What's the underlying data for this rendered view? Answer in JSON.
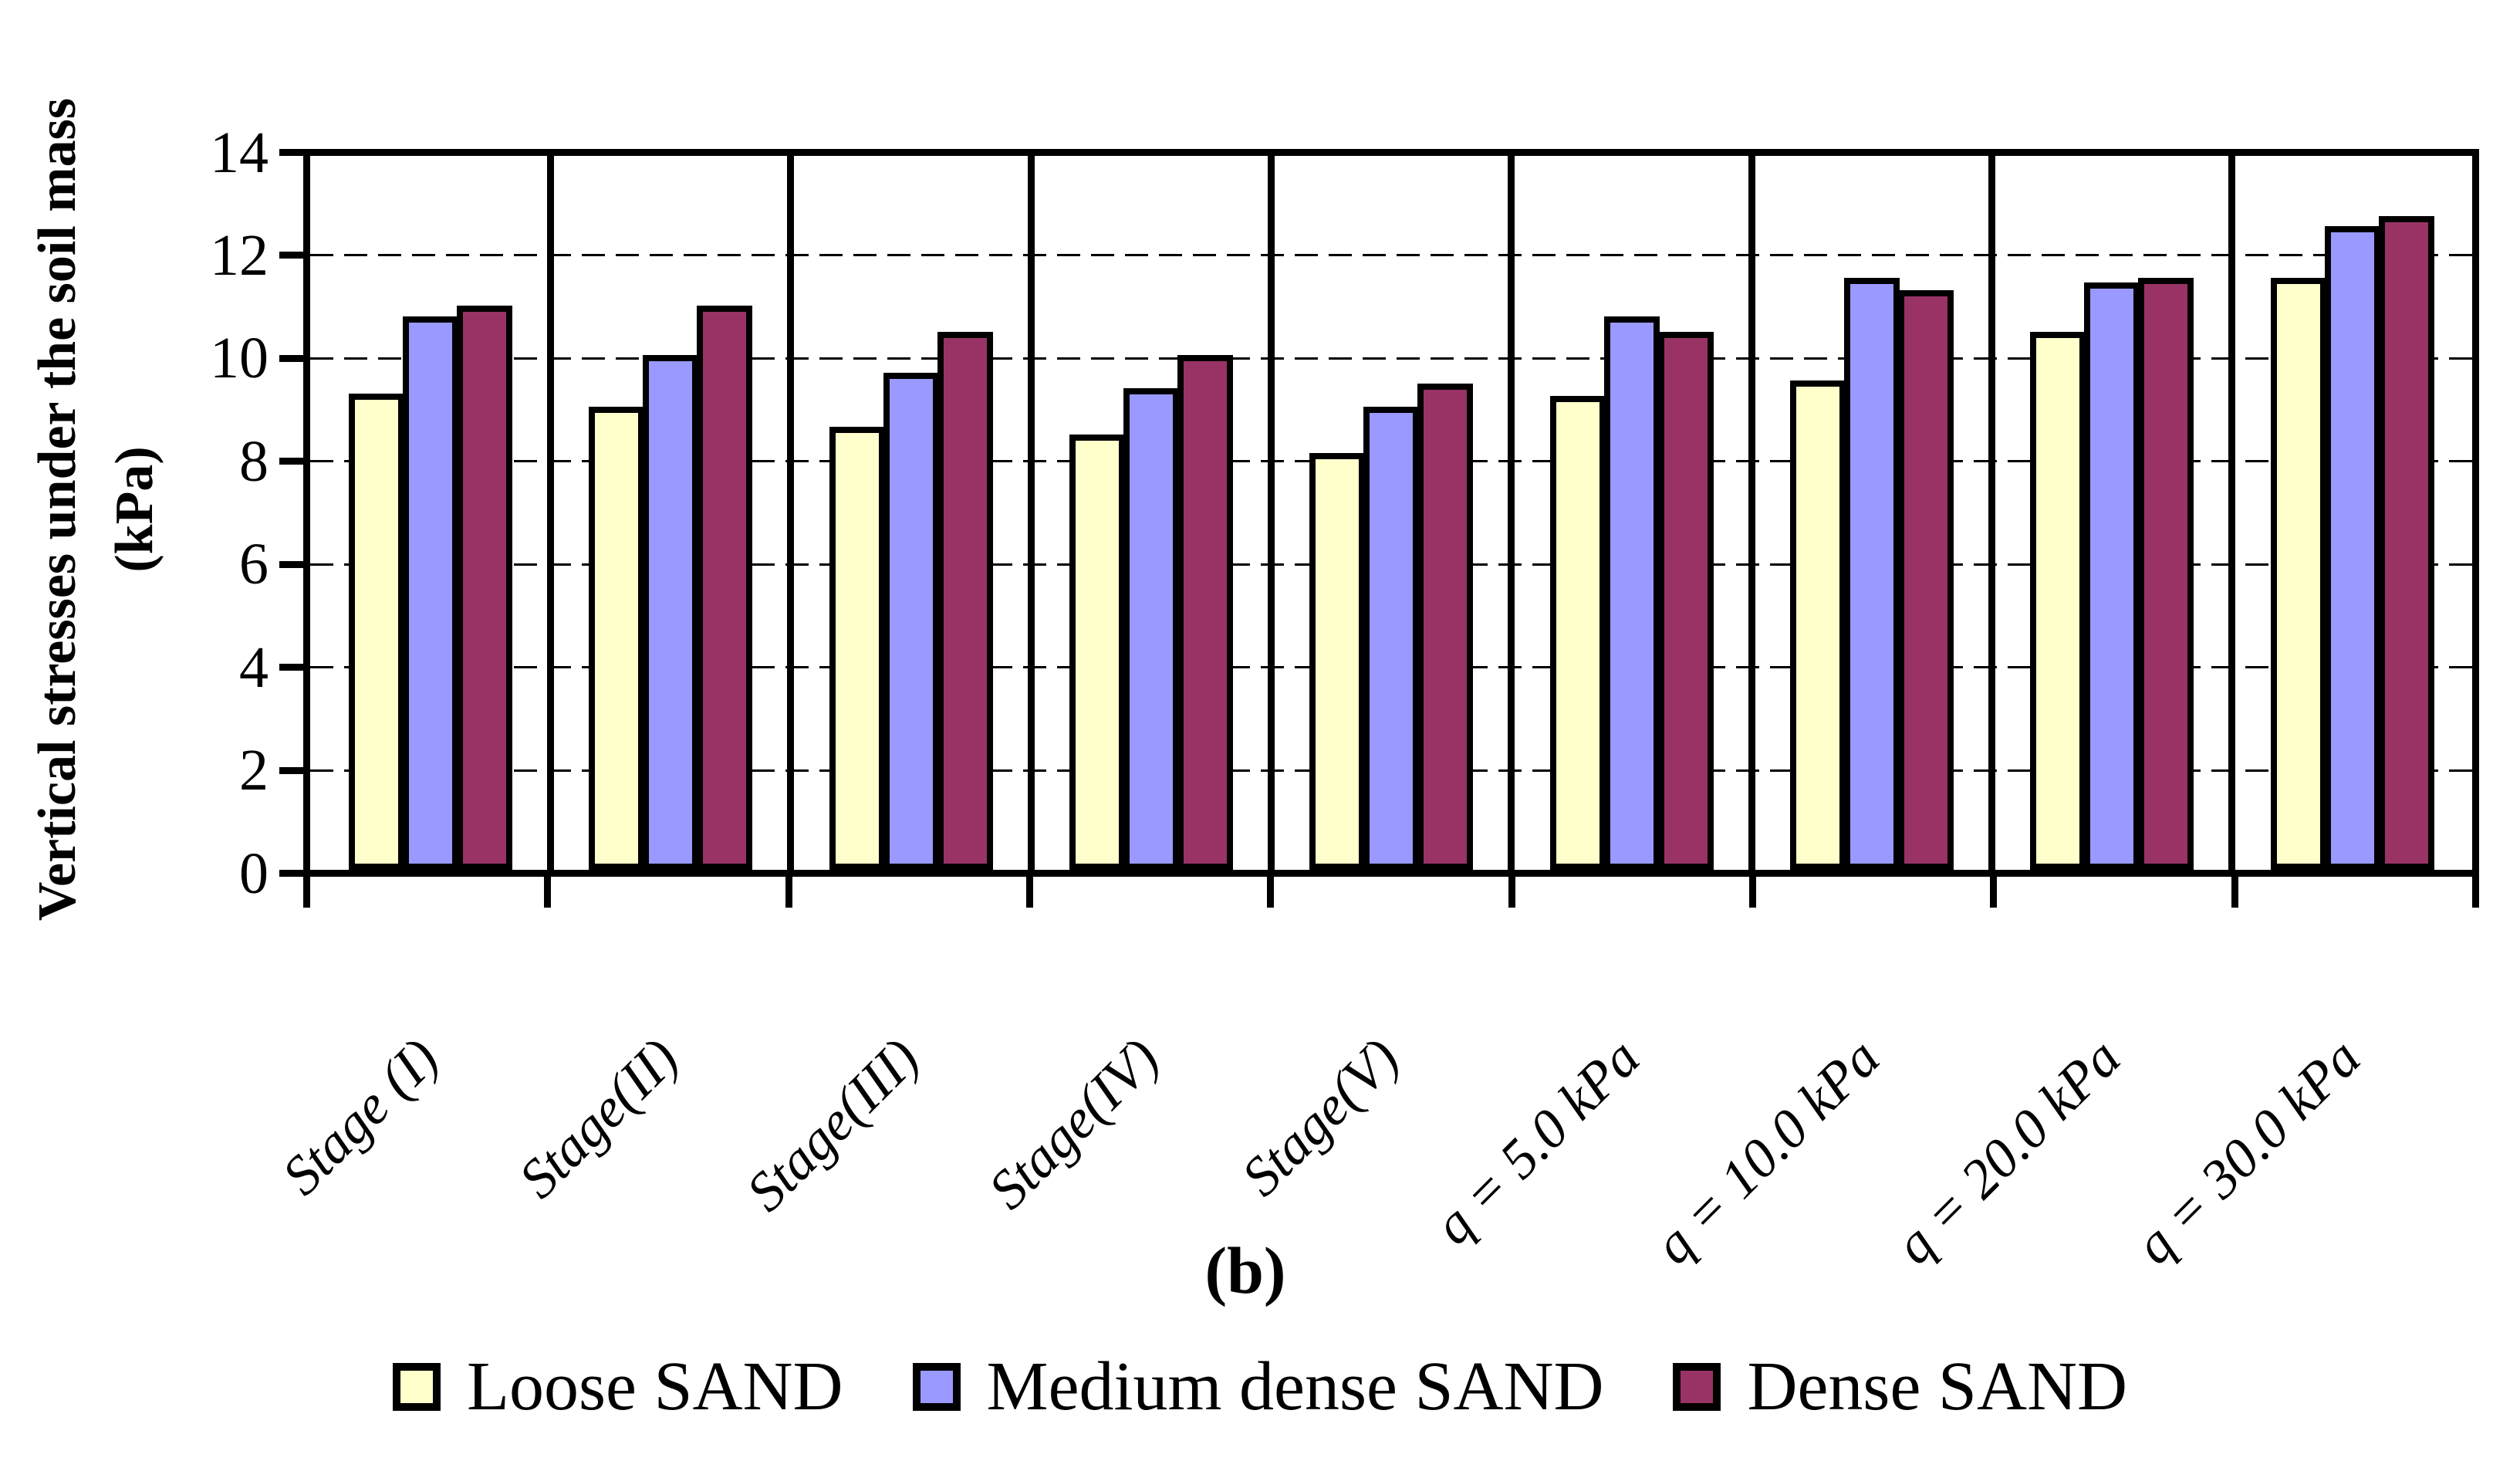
{
  "figure": {
    "label": "(b)"
  },
  "y_axis": {
    "title_line1": "Vertical stresses under the soil mass",
    "title_line2": "(kPa)"
  },
  "chart_data": {
    "type": "bar",
    "title": "",
    "ylabel": "Vertical stresses under the soil mass (kPa)",
    "xlabel": "",
    "ylim": [
      0,
      14
    ],
    "yticks": [
      0,
      2,
      4,
      6,
      8,
      10,
      12,
      14
    ],
    "grid": "horizontal-dashed",
    "legend_position": "bottom",
    "categories": [
      "Stage (I)",
      "Stage(II)",
      "Stage(III)",
      "Stage(IV)",
      "Stage(V)",
      "q = 5.0 kPa",
      "q = 10.0 kPa",
      "q = 20.0 kPa",
      "q = 30.0 kPa"
    ],
    "series": [
      {
        "name": "Loose SAND",
        "color": "#FFFFCC",
        "values": [
          9.25,
          9.0,
          8.6,
          8.45,
          8.1,
          9.2,
          9.5,
          10.45,
          11.5
        ]
      },
      {
        "name": "Medium dense SAND",
        "color": "#9999FF",
        "values": [
          10.75,
          10.0,
          9.65,
          9.35,
          9.0,
          10.75,
          11.5,
          11.4,
          12.5
        ]
      },
      {
        "name": "Dense SAND",
        "color": "#993366",
        "values": [
          10.95,
          10.95,
          10.45,
          10.0,
          9.45,
          10.45,
          11.25,
          11.5,
          12.7
        ]
      }
    ]
  }
}
